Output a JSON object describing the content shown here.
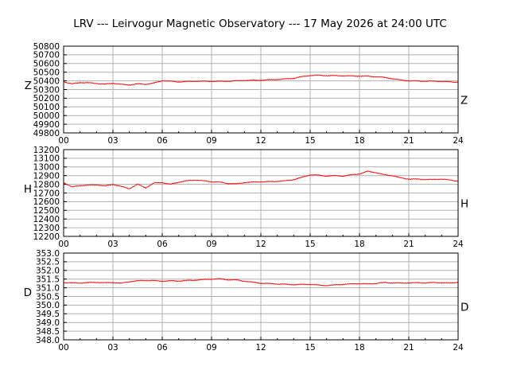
{
  "chart_data": {
    "title": "LRV --- Leirvogur Magnetic Observatory --- 17 May 2026 at 24:00 UTC",
    "x_tick_labels": [
      "00",
      "03",
      "06",
      "09",
      "12",
      "15",
      "18",
      "21",
      "24"
    ],
    "x_range": [
      0,
      24
    ],
    "panels": [
      {
        "type": "line",
        "name": "Z",
        "left_label": "Z",
        "right_label": "Z",
        "ylim": [
          49800,
          50800
        ],
        "y_ticks": [
          49800,
          49900,
          50000,
          50100,
          50200,
          50300,
          50400,
          50500,
          50600,
          50700,
          50800
        ],
        "y_tick_labels": [
          "49800",
          "49900",
          "50000",
          "50100",
          "50200",
          "50300",
          "50400",
          "50500",
          "50600",
          "50700",
          "50800"
        ],
        "series": [
          {
            "color": "#ff0000",
            "x": [
              0,
              0.5,
              1,
              1.5,
              2,
              2.5,
              3,
              3.5,
              4,
              4.5,
              5,
              5.5,
              6,
              6.5,
              7,
              7.5,
              8,
              8.5,
              9,
              9.5,
              10,
              10.5,
              11,
              11.5,
              12,
              12.5,
              13,
              13.5,
              14,
              14.5,
              15,
              15.5,
              16,
              16.5,
              17,
              17.5,
              18,
              18.5,
              19,
              19.5,
              20,
              20.5,
              21,
              21.5,
              22,
              22.5,
              23,
              23.5,
              24
            ],
            "y": [
              50390,
              50365,
              50380,
              50378,
              50370,
              50362,
              50372,
              50360,
              50352,
              50366,
              50360,
              50375,
              50402,
              50395,
              50388,
              50392,
              50396,
              50395,
              50395,
              50394,
              50396,
              50400,
              50405,
              50405,
              50408,
              50412,
              50416,
              50422,
              50430,
              50448,
              50462,
              50465,
              50460,
              50460,
              50458,
              50456,
              50455,
              50453,
              50448,
              50440,
              50425,
              50410,
              50400,
              50398,
              50396,
              50396,
              50394,
              50388,
              50384
            ]
          }
        ]
      },
      {
        "type": "line",
        "name": "H",
        "left_label": "H",
        "right_label": "H",
        "ylim": [
          12200,
          13200
        ],
        "y_ticks": [
          12200,
          12300,
          12400,
          12500,
          12600,
          12700,
          12800,
          12900,
          13000,
          13100,
          13200
        ],
        "y_tick_labels": [
          "12200",
          "12300",
          "12400",
          "12500",
          "12600",
          "12700",
          "12800",
          "12900",
          "13000",
          "13100",
          "13200"
        ],
        "series": [
          {
            "color": "#ff0000",
            "x": [
              0,
              0.5,
              1,
              1.5,
              2,
              2.5,
              3,
              3.5,
              4,
              4.5,
              5,
              5.5,
              6,
              6.5,
              7,
              7.5,
              8,
              8.5,
              9,
              9.5,
              10,
              10.5,
              11,
              11.5,
              12,
              12.5,
              13,
              13.5,
              14,
              14.5,
              15,
              15.5,
              16,
              16.5,
              17,
              17.5,
              18,
              18.5,
              19,
              19.5,
              20,
              20.5,
              21,
              21.5,
              22,
              22.5,
              23,
              23.5,
              24
            ],
            "y": [
              12820,
              12770,
              12785,
              12790,
              12795,
              12780,
              12800,
              12775,
              12750,
              12800,
              12760,
              12815,
              12820,
              12800,
              12825,
              12840,
              12850,
              12840,
              12830,
              12825,
              12810,
              12805,
              12820,
              12825,
              12830,
              12830,
              12835,
              12840,
              12855,
              12880,
              12910,
              12905,
              12895,
              12900,
              12895,
              12910,
              12920,
              12950,
              12935,
              12910,
              12900,
              12875,
              12860,
              12860,
              12855,
              12855,
              12860,
              12850,
              12835
            ]
          }
        ]
      },
      {
        "type": "line",
        "name": "D",
        "left_label": "D",
        "right_label": "D",
        "ylim": [
          348.0,
          353.0
        ],
        "y_ticks": [
          348.0,
          348.5,
          349.0,
          349.5,
          350.0,
          350.5,
          351.0,
          351.5,
          352.0,
          352.5,
          353.0
        ],
        "y_tick_labels": [
          "348.0",
          "348.5",
          "349.0",
          "349.5",
          "350.0",
          "350.5",
          "351.0",
          "351.5",
          "352.0",
          "352.5",
          "353.0"
        ],
        "series": [
          {
            "color": "#ff0000",
            "x": [
              0,
              0.5,
              1,
              1.5,
              2,
              2.5,
              3,
              3.5,
              4,
              4.5,
              5,
              5.5,
              6,
              6.5,
              7,
              7.5,
              8,
              8.5,
              9,
              9.5,
              10,
              10.5,
              11,
              11.5,
              12,
              12.5,
              13,
              13.5,
              14,
              14.5,
              15,
              15.5,
              16,
              16.5,
              17,
              17.5,
              18,
              18.5,
              19,
              19.5,
              20,
              20.5,
              21,
              21.5,
              22,
              22.5,
              23,
              23.5,
              24
            ],
            "y": [
              351.3,
              351.28,
              351.27,
              351.3,
              351.31,
              351.29,
              351.3,
              351.26,
              351.35,
              351.4,
              351.42,
              351.41,
              351.38,
              351.4,
              351.39,
              351.42,
              351.44,
              351.47,
              351.5,
              351.52,
              351.46,
              351.45,
              351.38,
              351.32,
              351.26,
              351.24,
              351.22,
              351.2,
              351.18,
              351.19,
              351.2,
              351.15,
              351.13,
              351.16,
              351.2,
              351.22,
              351.24,
              351.22,
              351.25,
              351.3,
              351.28,
              351.27,
              351.28,
              351.29,
              351.28,
              351.3,
              351.29,
              351.27,
              351.32
            ]
          }
        ]
      }
    ]
  }
}
